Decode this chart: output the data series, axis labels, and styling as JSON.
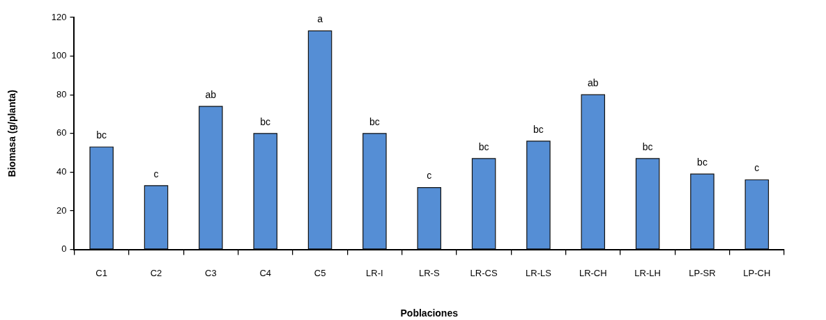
{
  "chart_data": {
    "type": "bar",
    "xlabel": "Poblaciones",
    "ylabel": "Biomasa (g/planta)",
    "categories": [
      "C1",
      "C2",
      "C3",
      "C4",
      "C5",
      "LR-I",
      "LR-S",
      "LR-CS",
      "LR-LS",
      "LR-CH",
      "LR-LH",
      "LP-SR",
      "LP-CH"
    ],
    "values": [
      53,
      33,
      74,
      60,
      113,
      60,
      32,
      47,
      56,
      80,
      47,
      39,
      36
    ],
    "color": "#558ed5",
    "ylim": [
      0,
      120
    ],
    "yticks": [
      0,
      20,
      40,
      60,
      80,
      100,
      120
    ],
    "grid": false,
    "legend": false,
    "annotations": [
      {
        "text": "bc",
        "x": "C1",
        "y": 53
      },
      {
        "text": "c",
        "x": "C2",
        "y": 33
      },
      {
        "text": "ab",
        "x": "C3",
        "y": 74
      },
      {
        "text": "bc",
        "x": "C4",
        "y": 60
      },
      {
        "text": "a",
        "x": "C5",
        "y": 113
      },
      {
        "text": "bc",
        "x": "LR-I",
        "y": 60
      },
      {
        "text": "c",
        "x": "LR-S",
        "y": 32
      },
      {
        "text": "bc",
        "x": "LR-CS",
        "y": 47
      },
      {
        "text": "bc",
        "x": "LR-LS",
        "y": 56
      },
      {
        "text": "ab",
        "x": "LR-CH",
        "y": 80
      },
      {
        "text": "bc",
        "x": "LR-LH",
        "y": 47
      },
      {
        "text": "bc",
        "x": "LP-SR",
        "y": 39
      },
      {
        "text": "c",
        "x": "LP-CH",
        "y": 36
      }
    ]
  }
}
